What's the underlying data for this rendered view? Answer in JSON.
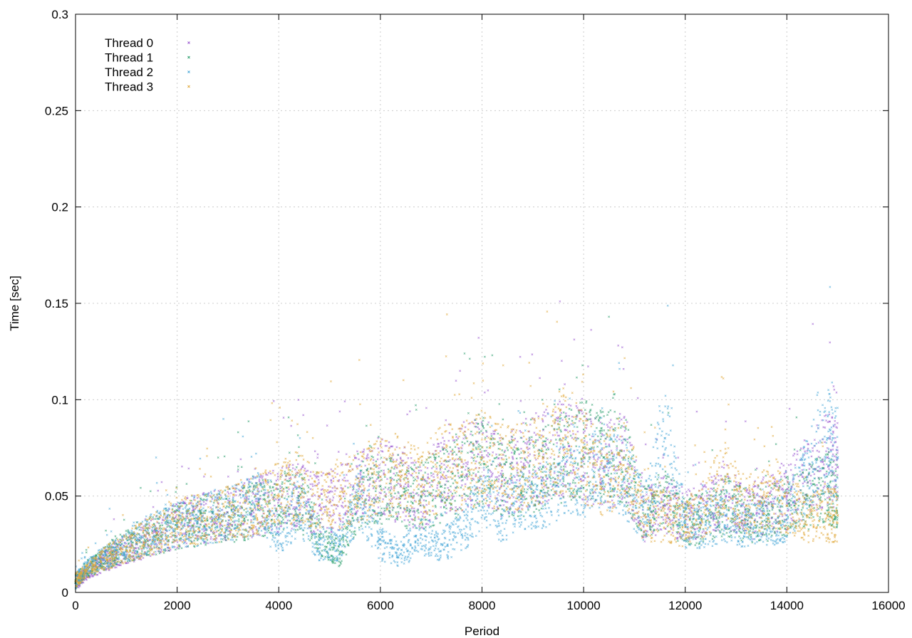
{
  "chart_data": {
    "type": "scatter",
    "title": "",
    "xlabel": "Period",
    "ylabel": "Time [sec]",
    "xlim": [
      0,
      16000
    ],
    "ylim": [
      0,
      0.3
    ],
    "xticks": [
      0,
      2000,
      4000,
      6000,
      8000,
      10000,
      12000,
      14000,
      16000
    ],
    "yticks": [
      0,
      0.05,
      0.1,
      0.15,
      0.2,
      0.25,
      0.3
    ],
    "xtick_labels": [
      "0",
      "2000",
      "4000",
      "6000",
      "8000",
      "10000",
      "12000",
      "14000",
      "16000"
    ],
    "ytick_labels": [
      "0",
      "0.05",
      "0.1",
      "0.15",
      "0.2",
      "0.25",
      "0.3"
    ],
    "grid": true,
    "legend": "top-left",
    "series": [
      {
        "name": "Thread 0",
        "color": "#9b59d0",
        "x": [
          0,
          200,
          500,
          800,
          1200,
          1600,
          2000,
          2400,
          2800,
          3200,
          3600,
          4000,
          4400,
          4800,
          5200,
          5600,
          6000,
          6400,
          6800,
          7200,
          7600,
          8000,
          8400,
          8800,
          9200,
          9600,
          10000,
          10400,
          10800,
          11200,
          11600,
          12000,
          12400,
          12800,
          13200,
          13600,
          14000,
          14400,
          14800,
          15000
        ],
        "y": [
          0.005,
          0.01,
          0.015,
          0.02,
          0.025,
          0.03,
          0.035,
          0.038,
          0.04,
          0.042,
          0.045,
          0.048,
          0.05,
          0.045,
          0.05,
          0.055,
          0.06,
          0.055,
          0.05,
          0.06,
          0.065,
          0.07,
          0.06,
          0.065,
          0.07,
          0.075,
          0.07,
          0.065,
          0.07,
          0.04,
          0.045,
          0.04,
          0.045,
          0.05,
          0.04,
          0.045,
          0.05,
          0.06,
          0.07,
          0.065
        ]
      },
      {
        "name": "Thread 1",
        "color": "#2a9d6b",
        "x": [
          0,
          200,
          500,
          800,
          1200,
          1600,
          2000,
          2400,
          2800,
          3200,
          3600,
          4000,
          4400,
          4800,
          5200,
          5600,
          6000,
          6400,
          6800,
          7200,
          7600,
          8000,
          8400,
          8800,
          9200,
          9600,
          10000,
          10400,
          10800,
          11200,
          11600,
          12000,
          12400,
          12800,
          13200,
          13600,
          14000,
          14400,
          14800,
          15000
        ],
        "y": [
          0.005,
          0.012,
          0.016,
          0.022,
          0.026,
          0.03,
          0.034,
          0.036,
          0.04,
          0.04,
          0.043,
          0.045,
          0.05,
          0.03,
          0.02,
          0.05,
          0.055,
          0.05,
          0.05,
          0.055,
          0.06,
          0.07,
          0.06,
          0.06,
          0.065,
          0.07,
          0.075,
          0.07,
          0.07,
          0.04,
          0.05,
          0.035,
          0.04,
          0.045,
          0.04,
          0.04,
          0.045,
          0.05,
          0.055,
          0.05
        ]
      },
      {
        "name": "Thread 2",
        "color": "#4aa8d8",
        "x": [
          0,
          200,
          500,
          800,
          1200,
          1600,
          2000,
          2400,
          2800,
          3200,
          3600,
          4000,
          4400,
          4800,
          5200,
          5600,
          6000,
          6400,
          6800,
          7200,
          7600,
          8000,
          8400,
          8800,
          9200,
          9600,
          10000,
          10400,
          10800,
          11200,
          11600,
          12000,
          12400,
          12800,
          13200,
          13600,
          14000,
          14400,
          14800,
          15000
        ],
        "y": [
          0.006,
          0.012,
          0.017,
          0.022,
          0.027,
          0.032,
          0.035,
          0.037,
          0.04,
          0.042,
          0.046,
          0.03,
          0.045,
          0.025,
          0.025,
          0.05,
          0.025,
          0.02,
          0.03,
          0.025,
          0.03,
          0.05,
          0.04,
          0.05,
          0.05,
          0.06,
          0.06,
          0.065,
          0.06,
          0.04,
          0.08,
          0.035,
          0.035,
          0.04,
          0.035,
          0.035,
          0.04,
          0.06,
          0.08,
          0.07
        ]
      },
      {
        "name": "Thread 3",
        "color": "#e0a83a",
        "x": [
          0,
          200,
          500,
          800,
          1200,
          1600,
          2000,
          2400,
          2800,
          3200,
          3600,
          4000,
          4400,
          4800,
          5200,
          5600,
          6000,
          6400,
          6800,
          7200,
          7600,
          8000,
          8400,
          8800,
          9200,
          9600,
          10000,
          10400,
          10800,
          11200,
          11600,
          12000,
          12400,
          12800,
          13200,
          13600,
          14000,
          14400,
          14800,
          15000
        ],
        "y": [
          0.006,
          0.011,
          0.016,
          0.021,
          0.026,
          0.031,
          0.036,
          0.038,
          0.04,
          0.043,
          0.046,
          0.05,
          0.055,
          0.05,
          0.05,
          0.055,
          0.06,
          0.06,
          0.055,
          0.065,
          0.065,
          0.07,
          0.065,
          0.065,
          0.07,
          0.08,
          0.07,
          0.06,
          0.07,
          0.04,
          0.04,
          0.035,
          0.045,
          0.06,
          0.045,
          0.05,
          0.045,
          0.04,
          0.04,
          0.04
        ]
      }
    ]
  }
}
